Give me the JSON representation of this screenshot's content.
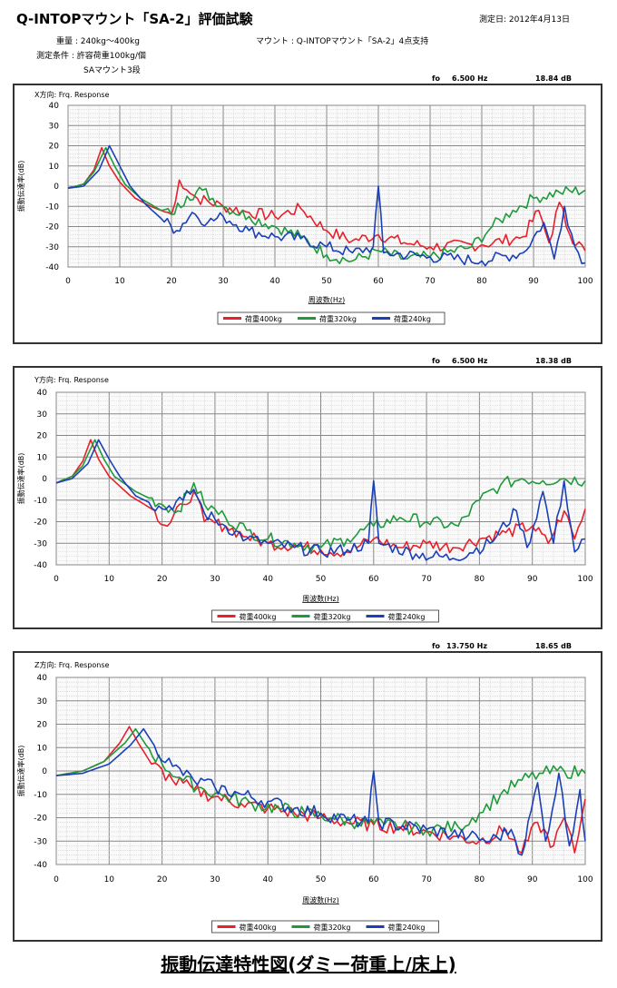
{
  "header": {
    "title": "Q-INTOPマウント「SA-2」評価試験",
    "date": "測定日: 2012年4月13日",
    "weight": "重量 : 240kg～400kg",
    "condition": "測定条件 : 許容荷重100kg/個",
    "condition2": "SAマウント3段",
    "mount": "マウント : Q-INTOPマウント「SA-2」4点支持"
  },
  "footer": {
    "title": "振動伝達特性図(ダミー荷重上/床上)"
  },
  "colors": {
    "red": "#e8202a",
    "green": "#1f9a3a",
    "blue": "#1a3fb8"
  },
  "chart_data": [
    {
      "type": "line",
      "title": "X方向: Frq. Response",
      "fo_label": "fo",
      "fo": "6.500 Hz",
      "peak": "18.84 dB",
      "xlabel": "周波数(Hz)",
      "ylabel": "振動伝達率(dB)",
      "xlim": [
        0,
        100
      ],
      "ylim": [
        -40,
        40
      ],
      "xticks": [
        "0",
        "10",
        "20",
        "30",
        "40",
        "50",
        "60",
        "70",
        "80",
        "90",
        "100"
      ],
      "yticks": [
        "40",
        "30",
        "20",
        "10",
        "0",
        "-10",
        "-20",
        "-30",
        "-40"
      ],
      "grid": true,
      "legend": "bottom-center",
      "series": [
        {
          "name": "荷重400kg",
          "color": "red",
          "points": [
            [
              0,
              -1
            ],
            [
              3,
              1
            ],
            [
              5,
              8
            ],
            [
              6.5,
              19
            ],
            [
              8,
              10
            ],
            [
              10,
              2
            ],
            [
              13,
              -6
            ],
            [
              16,
              -10
            ],
            [
              20,
              -14
            ],
            [
              21.5,
              3
            ],
            [
              23,
              -2
            ],
            [
              25,
              -6
            ],
            [
              30,
              -10
            ],
            [
              35,
              -13
            ],
            [
              40,
              -15
            ],
            [
              45,
              -11
            ],
            [
              50,
              -22
            ],
            [
              55,
              -27
            ],
            [
              60,
              -24
            ],
            [
              65,
              -28
            ],
            [
              70,
              -30
            ],
            [
              80,
              -29
            ],
            [
              88,
              -25
            ],
            [
              91,
              -12
            ],
            [
              93,
              -28
            ],
            [
              95,
              -8
            ],
            [
              97,
              -24
            ],
            [
              100,
              -32
            ]
          ]
        },
        {
          "name": "荷重320kg",
          "color": "green",
          "points": [
            [
              0,
              -1
            ],
            [
              3,
              1
            ],
            [
              5,
              7
            ],
            [
              7.3,
              19
            ],
            [
              9,
              10
            ],
            [
              11,
              1
            ],
            [
              14,
              -6
            ],
            [
              18,
              -12
            ],
            [
              20,
              -14
            ],
            [
              23,
              -5
            ],
            [
              26,
              -2
            ],
            [
              30,
              -10
            ],
            [
              35,
              -15
            ],
            [
              40,
              -20
            ],
            [
              45,
              -25
            ],
            [
              50,
              -34
            ],
            [
              55,
              -37
            ],
            [
              60,
              -32
            ],
            [
              65,
              -36
            ],
            [
              70,
              -35
            ],
            [
              78,
              -30
            ],
            [
              82,
              -20
            ],
            [
              86,
              -12
            ],
            [
              90,
              -6
            ],
            [
              95,
              -3
            ],
            [
              100,
              -2
            ]
          ]
        },
        {
          "name": "荷重240kg",
          "color": "blue",
          "points": [
            [
              0,
              -1
            ],
            [
              3,
              0
            ],
            [
              6,
              8
            ],
            [
              8,
              20
            ],
            [
              10,
              10
            ],
            [
              12,
              0
            ],
            [
              15,
              -9
            ],
            [
              18,
              -16
            ],
            [
              21,
              -22
            ],
            [
              24,
              -13
            ],
            [
              27,
              -18
            ],
            [
              30,
              -15
            ],
            [
              35,
              -22
            ],
            [
              40,
              -25
            ],
            [
              45,
              -26
            ],
            [
              50,
              -30
            ],
            [
              55,
              -33
            ],
            [
              59,
              -30
            ],
            [
              60,
              0
            ],
            [
              61,
              -33
            ],
            [
              70,
              -35
            ],
            [
              80,
              -37
            ],
            [
              88,
              -33
            ],
            [
              92,
              -18
            ],
            [
              94,
              -36
            ],
            [
              96,
              -10
            ],
            [
              98,
              -30
            ],
            [
              100,
              -38
            ]
          ]
        }
      ]
    },
    {
      "type": "line",
      "title": "Y方向: Frq. Response",
      "fo_label": "fo",
      "fo": "6.500 Hz",
      "peak": "18.38 dB",
      "xlabel": "周波数(Hz)",
      "ylabel": "振動伝達率(dB)",
      "xlim": [
        0,
        100
      ],
      "ylim": [
        -40,
        40
      ],
      "xticks": [
        "0",
        "10",
        "20",
        "30",
        "40",
        "50",
        "60",
        "70",
        "80",
        "90",
        "100"
      ],
      "yticks": [
        "40",
        "30",
        "20",
        "10",
        "0",
        "-10",
        "-20",
        "-30",
        "-40"
      ],
      "grid": true,
      "legend": "bottom-center",
      "series": [
        {
          "name": "荷重400kg",
          "color": "red",
          "points": [
            [
              0,
              -2
            ],
            [
              3,
              1
            ],
            [
              5,
              8
            ],
            [
              6.5,
              18
            ],
            [
              8,
              9
            ],
            [
              10,
              1
            ],
            [
              14,
              -8
            ],
            [
              18,
              -14
            ],
            [
              21,
              -22
            ],
            [
              24,
              -12
            ],
            [
              26,
              -6
            ],
            [
              28,
              -20
            ],
            [
              32,
              -22
            ],
            [
              36,
              -27
            ],
            [
              40,
              -30
            ],
            [
              45,
              -31
            ],
            [
              50,
              -33
            ],
            [
              55,
              -34
            ],
            [
              60,
              -28
            ],
            [
              65,
              -32
            ],
            [
              70,
              -30
            ],
            [
              75,
              -32
            ],
            [
              80,
              -28
            ],
            [
              85,
              -25
            ],
            [
              90,
              -22
            ],
            [
              93,
              -30
            ],
            [
              96,
              -15
            ],
            [
              98,
              -28
            ],
            [
              100,
              -14
            ]
          ]
        },
        {
          "name": "荷重320kg",
          "color": "green",
          "points": [
            [
              0,
              -2
            ],
            [
              3,
              1
            ],
            [
              5,
              6
            ],
            [
              7.3,
              18
            ],
            [
              9,
              9
            ],
            [
              11,
              1
            ],
            [
              15,
              -6
            ],
            [
              20,
              -12
            ],
            [
              23,
              -15
            ],
            [
              26,
              -2
            ],
            [
              28,
              -12
            ],
            [
              32,
              -18
            ],
            [
              36,
              -24
            ],
            [
              40,
              -28
            ],
            [
              45,
              -30
            ],
            [
              50,
              -32
            ],
            [
              55,
              -28
            ],
            [
              60,
              -22
            ],
            [
              65,
              -18
            ],
            [
              70,
              -20
            ],
            [
              76,
              -22
            ],
            [
              80,
              -10
            ],
            [
              84,
              -3
            ],
            [
              88,
              0
            ],
            [
              92,
              -1
            ],
            [
              96,
              0
            ],
            [
              100,
              -1
            ]
          ]
        },
        {
          "name": "荷重240kg",
          "color": "blue",
          "points": [
            [
              0,
              -2
            ],
            [
              3,
              0
            ],
            [
              6,
              7
            ],
            [
              8,
              18
            ],
            [
              10,
              9
            ],
            [
              12,
              1
            ],
            [
              15,
              -8
            ],
            [
              20,
              -14
            ],
            [
              24,
              -10
            ],
            [
              26,
              -5
            ],
            [
              28,
              -16
            ],
            [
              32,
              -22
            ],
            [
              36,
              -28
            ],
            [
              40,
              -30
            ],
            [
              45,
              -32
            ],
            [
              50,
              -34
            ],
            [
              55,
              -33
            ],
            [
              59,
              -30
            ],
            [
              60,
              -1
            ],
            [
              61,
              -30
            ],
            [
              68,
              -35
            ],
            [
              75,
              -37
            ],
            [
              82,
              -30
            ],
            [
              87,
              -15
            ],
            [
              89,
              -32
            ],
            [
              92,
              -6
            ],
            [
              94,
              -30
            ],
            [
              96,
              -1
            ],
            [
              98,
              -34
            ],
            [
              100,
              -28
            ]
          ]
        }
      ]
    },
    {
      "type": "line",
      "title": "Z方向: Frq. Response",
      "fo_label": "fo",
      "fo": "13.750 Hz",
      "peak": "18.65 dB",
      "xlabel": "周波数(Hz)",
      "ylabel": "振動伝達率(dB)",
      "xlim": [
        0,
        100
      ],
      "ylim": [
        -40,
        40
      ],
      "xticks": [
        "0",
        "10",
        "20",
        "30",
        "40",
        "50",
        "60",
        "70",
        "80",
        "90",
        "100"
      ],
      "yticks": [
        "40",
        "30",
        "20",
        "10",
        "0",
        "-10",
        "-20",
        "-30",
        "-40"
      ],
      "grid": true,
      "legend": "bottom-center",
      "series": [
        {
          "name": "荷重400kg",
          "color": "red",
          "points": [
            [
              0,
              -2
            ],
            [
              5,
              0
            ],
            [
              9,
              4
            ],
            [
              12,
              12
            ],
            [
              13.8,
              19
            ],
            [
              15.5,
              12
            ],
            [
              18,
              3
            ],
            [
              22,
              -4
            ],
            [
              26,
              -8
            ],
            [
              30,
              -11
            ],
            [
              35,
              -14
            ],
            [
              40,
              -16
            ],
            [
              45,
              -18
            ],
            [
              50,
              -20
            ],
            [
              55,
              -22
            ],
            [
              60,
              -23
            ],
            [
              65,
              -24
            ],
            [
              70,
              -26
            ],
            [
              75,
              -28
            ],
            [
              80,
              -30
            ],
            [
              85,
              -25
            ],
            [
              88,
              -35
            ],
            [
              91,
              -22
            ],
            [
              94,
              -32
            ],
            [
              96,
              -20
            ],
            [
              98,
              -35
            ],
            [
              100,
              -12
            ]
          ]
        },
        {
          "name": "荷重320kg",
          "color": "green",
          "points": [
            [
              0,
              -2
            ],
            [
              5,
              0
            ],
            [
              9,
              4
            ],
            [
              13,
              12
            ],
            [
              15,
              18
            ],
            [
              17,
              11
            ],
            [
              20,
              3
            ],
            [
              24,
              -4
            ],
            [
              28,
              -8
            ],
            [
              32,
              -11
            ],
            [
              37,
              -14
            ],
            [
              42,
              -16
            ],
            [
              47,
              -18
            ],
            [
              52,
              -20
            ],
            [
              57,
              -22
            ],
            [
              62,
              -23
            ],
            [
              70,
              -25
            ],
            [
              76,
              -24
            ],
            [
              80,
              -18
            ],
            [
              84,
              -10
            ],
            [
              88,
              -4
            ],
            [
              92,
              -1
            ],
            [
              96,
              0
            ],
            [
              100,
              -1
            ]
          ]
        },
        {
          "name": "荷重240kg",
          "color": "blue",
          "points": [
            [
              0,
              -2
            ],
            [
              5,
              -1
            ],
            [
              10,
              3
            ],
            [
              14,
              11
            ],
            [
              16.5,
              18
            ],
            [
              18.5,
              11
            ],
            [
              22,
              2
            ],
            [
              26,
              -4
            ],
            [
              30,
              -7
            ],
            [
              35,
              -10
            ],
            [
              40,
              -13
            ],
            [
              45,
              -16
            ],
            [
              50,
              -18
            ],
            [
              55,
              -21
            ],
            [
              59,
              -22
            ],
            [
              60,
              0
            ],
            [
              61,
              -22
            ],
            [
              70,
              -25
            ],
            [
              78,
              -28
            ],
            [
              82,
              -30
            ],
            [
              86,
              -25
            ],
            [
              88,
              -36
            ],
            [
              91,
              -5
            ],
            [
              92.5,
              -30
            ],
            [
              95,
              -1
            ],
            [
              97,
              -32
            ],
            [
              99,
              -8
            ],
            [
              100,
              -30
            ]
          ]
        }
      ]
    }
  ]
}
